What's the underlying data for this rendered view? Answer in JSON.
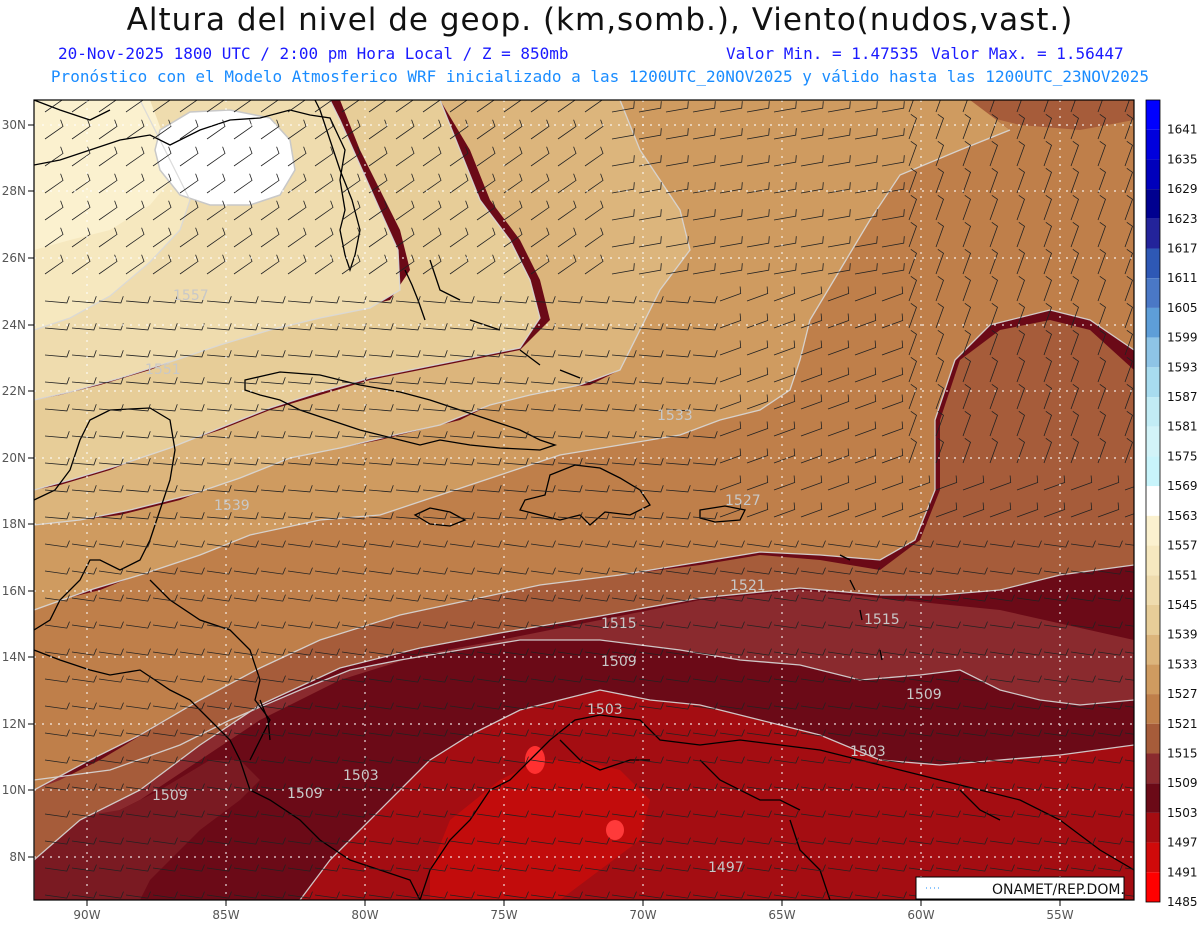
{
  "header": {
    "title": "Altura del nivel de geop. (km,somb.), Viento(nudos,vast.)",
    "date_line": "20-Nov-2025  1800 UTC / 2:00 pm Hora Local / Z = 850mb",
    "min_label": "Valor Min. = 1.47535",
    "max_label": "Valor Max. = 1.56447",
    "model_line": "Pronóstico con el Modelo Atmosferico WRF inicializado a las 1200UTC_20NOV2025 y válido hasta las  1200UTC_23NOV2025"
  },
  "map": {
    "lat_labels": [
      "30N",
      "28N",
      "26N",
      "24N",
      "22N",
      "20N",
      "18N",
      "16N",
      "14N",
      "12N",
      "10N",
      "8N"
    ],
    "lon_labels": [
      "90W",
      "85W",
      "80W",
      "75W",
      "70W",
      "65W",
      "60W",
      "55W"
    ],
    "contour_labels": [
      "1557",
      "1551",
      "1539",
      "1533",
      "1527",
      "1521",
      "1515",
      "1515",
      "1509",
      "1509",
      "1509",
      "1509",
      "1503",
      "1503",
      "1503",
      "1497"
    ],
    "credit": "ONAMET/REP.DOM."
  },
  "colorbar": {
    "levels": [
      {
        "value": "1641",
        "color": "#0000ff"
      },
      {
        "value": "1635",
        "color": "#0000dd"
      },
      {
        "value": "1629",
        "color": "#0000bb"
      },
      {
        "value": "1623",
        "color": "#00008f"
      },
      {
        "value": "1617",
        "color": "#23239a"
      },
      {
        "value": "1611",
        "color": "#2e58b5"
      },
      {
        "value": "1605",
        "color": "#4a78c6"
      },
      {
        "value": "1599",
        "color": "#5e9ed8"
      },
      {
        "value": "1593",
        "color": "#8ec4e6"
      },
      {
        "value": "1587",
        "color": "#a8dcef"
      },
      {
        "value": "1581",
        "color": "#c2ecf5"
      },
      {
        "value": "1575",
        "color": "#d2f3f8"
      },
      {
        "value": "1569",
        "color": "#c8f4fb"
      },
      {
        "value": "1563",
        "color": "#ffffff"
      },
      {
        "value": "1557",
        "color": "#fbf1cf"
      },
      {
        "value": "1551",
        "color": "#f6e8bf"
      },
      {
        "value": "1545",
        "color": "#efdcae"
      },
      {
        "value": "1539",
        "color": "#e7cd98"
      },
      {
        "value": "1533",
        "color": "#dcb57c"
      },
      {
        "value": "1527",
        "color": "#cf9b60"
      },
      {
        "value": "1521",
        "color": "#bf7f4a"
      },
      {
        "value": "1515",
        "color": "#a65c3a"
      },
      {
        "value": "1509",
        "color": "#8a2a2e"
      },
      {
        "value": "1503",
        "color": "#6b0a17"
      },
      {
        "value": "1497",
        "color": "#a40d12"
      },
      {
        "value": "1491",
        "color": "#d00a0a"
      },
      {
        "value": "1485",
        "color": "#ff0000"
      }
    ]
  }
}
